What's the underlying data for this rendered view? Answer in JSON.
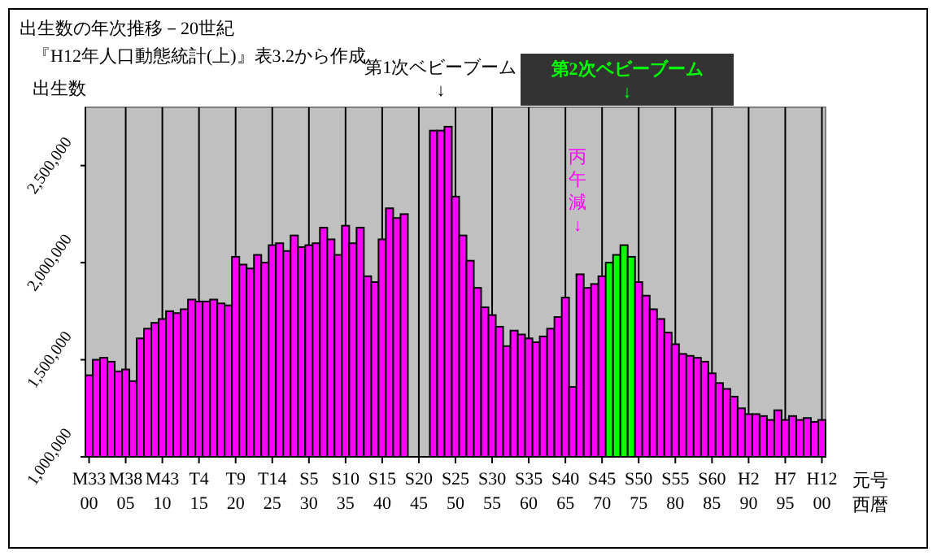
{
  "chart_data": {
    "type": "bar",
    "title": "出生数の年次推移－20世紀",
    "subtitle": "『H12年人口動態統計(上)』表3.2から作成",
    "ylabel": "出生数",
    "xlabel": "元号西暦",
    "categories": [
      "M33\n00",
      null,
      null,
      null,
      null,
      "M38\n05",
      null,
      null,
      null,
      null,
      "M43\n10",
      null,
      null,
      null,
      null,
      "T4\n15",
      null,
      null,
      null,
      null,
      "T9\n20",
      null,
      null,
      null,
      null,
      "T14\n25",
      null,
      null,
      null,
      null,
      "S5\n30",
      null,
      null,
      null,
      null,
      "S10\n35",
      null,
      null,
      null,
      null,
      "S15\n40",
      null,
      null,
      null,
      null,
      "S20\n45",
      null,
      null,
      null,
      null,
      "S25\n50",
      null,
      null,
      null,
      null,
      "S30\n55",
      null,
      null,
      null,
      null,
      "S35\n60",
      null,
      null,
      null,
      null,
      "S40\n65",
      null,
      null,
      null,
      null,
      "S45\n70",
      null,
      null,
      null,
      null,
      "S50\n75",
      null,
      null,
      null,
      null,
      "S55\n80",
      null,
      null,
      null,
      null,
      "S60\n85",
      null,
      null,
      null,
      null,
      "H2\n90",
      null,
      null,
      null,
      null,
      "H7\n95",
      null,
      null,
      null,
      null,
      "H12\n00"
    ],
    "values": [
      1420000,
      1500000,
      1510000,
      1490000,
      1440000,
      1450000,
      1390000,
      1610000,
      1660000,
      1690000,
      1710000,
      1750000,
      1740000,
      1760000,
      1810000,
      1800000,
      1800000,
      1810000,
      1790000,
      1780000,
      2030000,
      1990000,
      1970000,
      2040000,
      2000000,
      2090000,
      2100000,
      2060000,
      2140000,
      2080000,
      2090000,
      2100000,
      2180000,
      2120000,
      2040000,
      2190000,
      2100000,
      2180000,
      1930000,
      1900000,
      2120000,
      2280000,
      2230000,
      2250000,
      null,
      null,
      null,
      2680000,
      2680000,
      2700000,
      2340000,
      2140000,
      2010000,
      1870000,
      1770000,
      1730000,
      1670000,
      1570000,
      1650000,
      1630000,
      1610000,
      1590000,
      1620000,
      1660000,
      1720000,
      1820000,
      1360000,
      1940000,
      1870000,
      1890000,
      1930000,
      2000000,
      2040000,
      2090000,
      2030000,
      1900000,
      1830000,
      1760000,
      1710000,
      1640000,
      1580000,
      1530000,
      1520000,
      1510000,
      1490000,
      1430000,
      1380000,
      1350000,
      1310000,
      1250000,
      1220000,
      1220000,
      1210000,
      1190000,
      1240000,
      1190000,
      1210000,
      1190000,
      1200000,
      1180000,
      1190000
    ],
    "colors": [
      "#ff00ff",
      "#ff00ff",
      "#ff00ff",
      "#ff00ff",
      "#ff00ff",
      "#ff00ff",
      "#ff00ff",
      "#ff00ff",
      "#ff00ff",
      "#ff00ff",
      "#ff00ff",
      "#ff00ff",
      "#ff00ff",
      "#ff00ff",
      "#ff00ff",
      "#ff00ff",
      "#ff00ff",
      "#ff00ff",
      "#ff00ff",
      "#ff00ff",
      "#ff00ff",
      "#ff00ff",
      "#ff00ff",
      "#ff00ff",
      "#ff00ff",
      "#ff00ff",
      "#ff00ff",
      "#ff00ff",
      "#ff00ff",
      "#ff00ff",
      "#ff00ff",
      "#ff00ff",
      "#ff00ff",
      "#ff00ff",
      "#ff00ff",
      "#ff00ff",
      "#ff00ff",
      "#ff00ff",
      "#ff00ff",
      "#ff00ff",
      "#ff00ff",
      "#ff00ff",
      "#ff00ff",
      "#ff00ff",
      null,
      null,
      null,
      "#ff00ff",
      "#ff00ff",
      "#ff00ff",
      "#ff00ff",
      "#ff00ff",
      "#ff00ff",
      "#ff00ff",
      "#ff00ff",
      "#ff00ff",
      "#ff00ff",
      "#ff00ff",
      "#ff00ff",
      "#ff00ff",
      "#ff00ff",
      "#ff00ff",
      "#ff00ff",
      "#ff00ff",
      "#ff00ff",
      "#ff00ff",
      "#ff00ff",
      "#ff00ff",
      "#ff00ff",
      "#ff00ff",
      "#ff00ff",
      "#00ff00",
      "#00ff00",
      "#00ff00",
      "#00ff00",
      "#ff00ff",
      "#ff00ff",
      "#ff00ff",
      "#ff00ff",
      "#ff00ff",
      "#ff00ff",
      "#ff00ff",
      "#ff00ff",
      "#ff00ff",
      "#ff00ff",
      "#ff00ff",
      "#ff00ff",
      "#ff00ff",
      "#ff00ff",
      "#ff00ff",
      "#ff00ff",
      "#ff00ff",
      "#ff00ff",
      "#ff00ff",
      "#ff00ff",
      "#ff00ff",
      "#ff00ff",
      "#ff00ff",
      "#ff00ff",
      "#ff00ff",
      "#ff00ff"
    ],
    "ylim": [
      1000000,
      2800000
    ],
    "yticks": [
      {
        "value": 1000000,
        "label": "1,000,000"
      },
      {
        "value": 1500000,
        "label": "1,500,000"
      },
      {
        "value": 2000000,
        "label": "2,000,000"
      },
      {
        "value": 2500000,
        "label": "2,500,000"
      }
    ],
    "grid": "x",
    "annotations": [
      "第1次ベビーブーム\n↓",
      "第2次ベビーブーム\n↓",
      "丙午減↓"
    ]
  }
}
